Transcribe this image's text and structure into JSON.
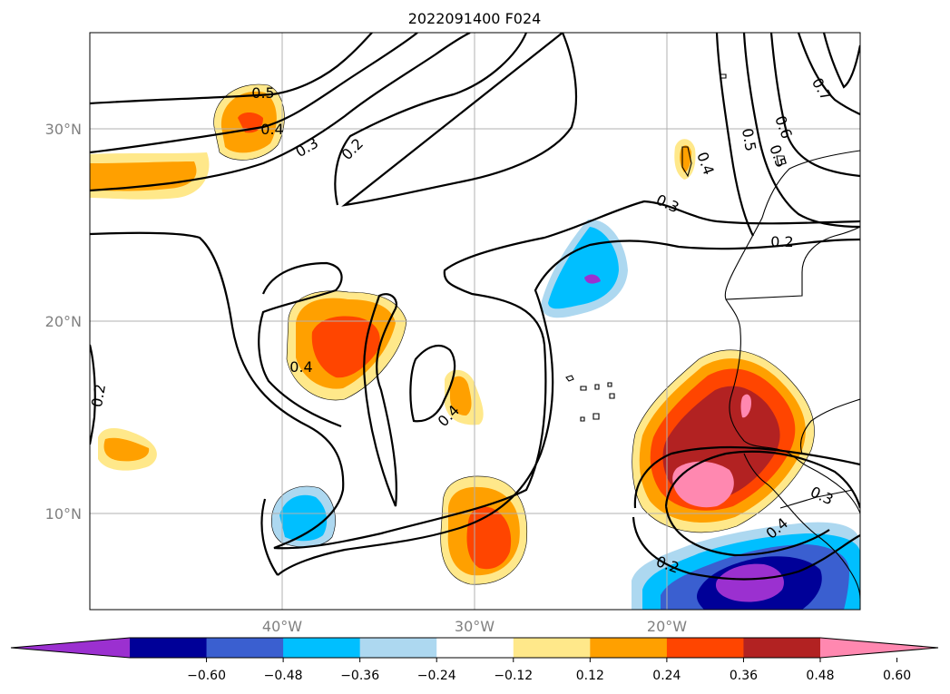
{
  "title": "2022091400 F024",
  "map": {
    "lat_labels": [
      "30°N",
      "20°N",
      "10°N"
    ],
    "lon_labels": [
      "40°W",
      "30°W",
      "20°W"
    ],
    "lon_range": [
      -50,
      -10
    ],
    "lat_range": [
      5,
      35
    ],
    "projection": "Mercator"
  },
  "contour_labels": [
    "0.5",
    "0.4",
    "0.3",
    "0.2",
    "0.3",
    "0.2",
    "0.4",
    "0.4",
    "0.2",
    "0.5",
    "0.6",
    "0.4",
    "0.3",
    "0.4",
    "0.2",
    "0.7",
    "0.5"
  ],
  "colorbar": {
    "ticks": [
      "−0.60",
      "−0.48",
      "−0.36",
      "−0.24",
      "−0.12",
      "0.12",
      "0.24",
      "0.36",
      "0.48",
      "0.60"
    ],
    "colors": [
      "#9b30d0",
      "#000098",
      "#3a5fd0",
      "#00bfff",
      "#add8f0",
      "#ffffff",
      "#ffe88a",
      "#ffa000",
      "#ff4500",
      "#b22222",
      "#ff88b0"
    ],
    "extend": "both"
  }
}
